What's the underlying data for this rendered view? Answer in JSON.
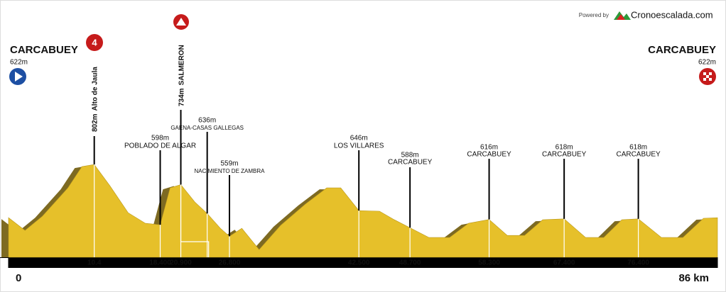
{
  "credit": "Powered by",
  "brand": "Cronoescalada.com",
  "chart_data": {
    "type": "profile",
    "start_name": "CARCABUEY",
    "start_elevation": "622m",
    "finish_name": "CARCABUEY",
    "finish_elevation": "622m",
    "climb_category": "4",
    "xlim": [
      0,
      86
    ],
    "ylim": [
      488,
      880
    ],
    "xticks": [
      0,
      {
        "value": 86,
        "label": "86 km"
      }
    ],
    "color": "#e6c02a",
    "shade_color": "#7d6a22",
    "profile": {
      "x": [
        0,
        2,
        4.1,
        7.2,
        8.9,
        10.4,
        12.3,
        14.5,
        16.6,
        18.4,
        19.6,
        20.9,
        22.6,
        24.1,
        25.7,
        26.8,
        28.3,
        30.4,
        33,
        36,
        38.6,
        40.3,
        42.5,
        45,
        46.8,
        48.7,
        51,
        53.5,
        55.8,
        58.3,
        60.5,
        62.6,
        64.8,
        67.4,
        70,
        72.2,
        74.4,
        76.4,
        79.2,
        81.8,
        84.3,
        86
      ],
      "values": [
        622,
        579,
        627,
        723,
        795,
        802,
        730,
        639,
        603,
        598,
        723,
        734,
        675,
        636,
        586,
        559,
        586,
        514,
        596,
        668,
        723,
        723,
        646,
        644,
        615,
        588,
        555,
        555,
        603,
        616,
        562,
        562,
        615,
        618,
        555,
        555,
        615,
        618,
        555,
        555,
        620,
        622
      ]
    },
    "waypoints": {
      "names": [
        "Alto de Jaula",
        "POBLADO DE ALGAR",
        "SALMERON",
        "GAENA-CASAS GALLEGAS",
        "NACIMIENTO DE ZAMBRA",
        "LOS VILLARES",
        "CARCABUEY",
        "CARCABUEY",
        "CARCABUEY",
        "CARCABUEY"
      ],
      "x": [
        10.4,
        18.4,
        20.9,
        24.1,
        26.8,
        42.5,
        48.7,
        58.3,
        67.4,
        76.4
      ],
      "x_labels": [
        "10.4",
        "18.400",
        "20.900",
        null,
        "26.800",
        "42.500",
        "48.700",
        "58.300",
        "67.400",
        "76.400"
      ],
      "values": [
        802,
        598,
        734,
        636,
        559,
        646,
        588,
        616,
        618,
        618
      ],
      "value_labels": [
        "802m",
        "598m",
        "734m",
        "636m",
        "559m",
        "646m",
        "588m",
        "616m",
        "618m",
        "618m"
      ]
    }
  }
}
